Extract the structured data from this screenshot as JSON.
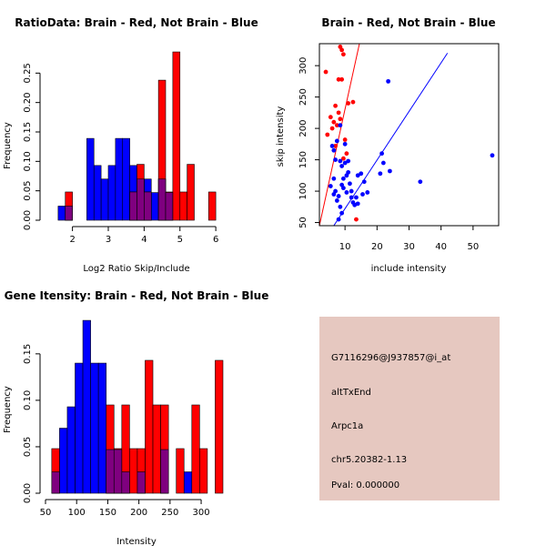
{
  "colors": {
    "red": "#ff0000",
    "blue": "#0000ff",
    "purple": "#7f007f",
    "infoBg": "#e6c8c0",
    "pval": "#b00000"
  },
  "chart_data": [
    {
      "id": "ratio",
      "type": "histogram",
      "title": "RatioData: Brain - Red, Not Brain - Blue",
      "xlabel": "Log2 Ratio Skip/Include",
      "ylabel": "Frequency",
      "xlim": [
        1.4,
        6.2
      ],
      "ylim": [
        0,
        0.3
      ],
      "xticks": [
        2,
        3,
        4,
        5,
        6
      ],
      "yticks": [
        0,
        0.05,
        0.1,
        0.15,
        0.2,
        0.25
      ],
      "ytick_labels": [
        "0.00",
        "0.05",
        "0.10",
        "0.15",
        "0.20",
        "0.25"
      ],
      "series": [
        {
          "name": "Not Brain",
          "color": "blue",
          "bins": [
            {
              "x0": 1.6,
              "x1": 1.8,
              "y": 0.024
            },
            {
              "x0": 1.8,
              "x1": 2.0,
              "y": 0.024
            },
            {
              "x0": 2.4,
              "x1": 2.6,
              "y": 0.139
            },
            {
              "x0": 2.6,
              "x1": 2.8,
              "y": 0.093
            },
            {
              "x0": 2.8,
              "x1": 3.0,
              "y": 0.07
            },
            {
              "x0": 3.0,
              "x1": 3.2,
              "y": 0.093
            },
            {
              "x0": 3.2,
              "x1": 3.4,
              "y": 0.139
            },
            {
              "x0": 3.4,
              "x1": 3.6,
              "y": 0.139
            },
            {
              "x0": 3.6,
              "x1": 3.8,
              "y": 0.093
            },
            {
              "x0": 3.8,
              "x1": 4.0,
              "y": 0.07
            },
            {
              "x0": 4.0,
              "x1": 4.2,
              "y": 0.07
            },
            {
              "x0": 4.2,
              "x1": 4.4,
              "y": 0.047
            },
            {
              "x0": 4.4,
              "x1": 4.6,
              "y": 0.07
            },
            {
              "x0": 4.6,
              "x1": 4.8,
              "y": 0.047
            }
          ]
        },
        {
          "name": "Brain",
          "color": "red",
          "bins": [
            {
              "x0": 1.8,
              "x1": 2.0,
              "y": 0.048
            },
            {
              "x0": 3.6,
              "x1": 3.8,
              "y": 0.048
            },
            {
              "x0": 3.8,
              "x1": 4.0,
              "y": 0.095
            },
            {
              "x0": 4.0,
              "x1": 4.2,
              "y": 0.048
            },
            {
              "x0": 4.4,
              "x1": 4.6,
              "y": 0.238
            },
            {
              "x0": 4.6,
              "x1": 4.8,
              "y": 0.048
            },
            {
              "x0": 4.8,
              "x1": 5.0,
              "y": 0.286
            },
            {
              "x0": 5.0,
              "x1": 5.2,
              "y": 0.048
            },
            {
              "x0": 5.2,
              "x1": 5.4,
              "y": 0.095
            },
            {
              "x0": 5.8,
              "x1": 6.0,
              "y": 0.048
            }
          ]
        }
      ]
    },
    {
      "id": "scatter",
      "type": "scatter",
      "title": "Brain - Red, Not Brain - Blue",
      "xlabel": "include intensity",
      "ylabel": "skip intensity",
      "xlim": [
        2,
        58
      ],
      "ylim": [
        45,
        335
      ],
      "xticks": [
        10,
        20,
        30,
        40,
        50
      ],
      "yticks": [
        50,
        100,
        150,
        200,
        250,
        300
      ],
      "lines": [
        {
          "color": "red",
          "x0": 2,
          "y0": 45,
          "x1": 14.5,
          "y1": 335
        },
        {
          "color": "blue",
          "x0": 6.5,
          "y0": 45,
          "x1": 42,
          "y1": 320
        }
      ],
      "series": [
        {
          "name": "Brain",
          "color": "red",
          "points": [
            [
              4,
              290
            ],
            [
              4.5,
              190
            ],
            [
              5.5,
              218
            ],
            [
              6,
              200
            ],
            [
              6.5,
              210
            ],
            [
              7,
              236
            ],
            [
              7.5,
              205
            ],
            [
              8,
              278
            ],
            [
              8.5,
              330
            ],
            [
              9,
              325
            ],
            [
              9,
              278
            ],
            [
              9.5,
              318
            ],
            [
              10,
              182
            ],
            [
              10.5,
              160
            ],
            [
              8,
              225
            ],
            [
              8.5,
              215
            ],
            [
              7,
              172
            ],
            [
              11,
              240
            ],
            [
              12.5,
              242
            ],
            [
              9.5,
              152
            ],
            [
              13.5,
              55
            ]
          ]
        },
        {
          "name": "Not Brain",
          "color": "blue",
          "points": [
            [
              5.5,
              108
            ],
            [
              6,
              172
            ],
            [
              6.5,
              165
            ],
            [
              6.5,
              95
            ],
            [
              7,
              100
            ],
            [
              7.5,
              85
            ],
            [
              8,
              92
            ],
            [
              8.5,
              148
            ],
            [
              8.5,
              75
            ],
            [
              9,
              140
            ],
            [
              9,
              110
            ],
            [
              9.5,
              120
            ],
            [
              9.5,
              105
            ],
            [
              10,
              175
            ],
            [
              10,
              145
            ],
            [
              10.5,
              125
            ],
            [
              11,
              130
            ],
            [
              11,
              148
            ],
            [
              11.5,
              112
            ],
            [
              12,
              90
            ],
            [
              12,
              100
            ],
            [
              12.5,
              82
            ],
            [
              13,
              78
            ],
            [
              13.5,
              90
            ],
            [
              14,
              125
            ],
            [
              14,
              80
            ],
            [
              15,
              128
            ],
            [
              15.5,
              95
            ],
            [
              16,
              115
            ],
            [
              17,
              98
            ],
            [
              21,
              128
            ],
            [
              21.5,
              160
            ],
            [
              22,
              145
            ],
            [
              23.5,
              275
            ],
            [
              24,
              132
            ],
            [
              33.5,
              115
            ],
            [
              56,
              157
            ],
            [
              8,
              55
            ],
            [
              9,
              65
            ],
            [
              7.5,
              180
            ],
            [
              6.5,
              120
            ],
            [
              10.5,
              98
            ],
            [
              8.5,
              205
            ],
            [
              7,
              150
            ]
          ]
        }
      ]
    },
    {
      "id": "intensity",
      "type": "histogram",
      "title": "Gene Itensity: Brain - Red, Not Brain - Blue",
      "xlabel": "Intensity",
      "ylabel": "Frequency",
      "xlim": [
        50,
        335
      ],
      "ylim": [
        0,
        0.19
      ],
      "xticks": [
        50,
        100,
        150,
        200,
        250,
        300
      ],
      "yticks": [
        0,
        0.05,
        0.1,
        0.15
      ],
      "ytick_labels": [
        "0.00",
        "0.05",
        "0.10",
        "0.15"
      ],
      "series": [
        {
          "name": "Not Brain",
          "color": "blue",
          "bins": [
            {
              "x0": 60,
              "x1": 72.5,
              "y": 0.023
            },
            {
              "x0": 72.5,
              "x1": 85,
              "y": 0.07
            },
            {
              "x0": 85,
              "x1": 97.5,
              "y": 0.093
            },
            {
              "x0": 97.5,
              "x1": 110,
              "y": 0.14
            },
            {
              "x0": 110,
              "x1": 122.5,
              "y": 0.186
            },
            {
              "x0": 122.5,
              "x1": 135,
              "y": 0.14
            },
            {
              "x0": 135,
              "x1": 147.5,
              "y": 0.14
            },
            {
              "x0": 147.5,
              "x1": 160,
              "y": 0.047
            },
            {
              "x0": 160,
              "x1": 172.5,
              "y": 0.047
            },
            {
              "x0": 172.5,
              "x1": 185,
              "y": 0.023
            },
            {
              "x0": 197.5,
              "x1": 210,
              "y": 0.023
            },
            {
              "x0": 235,
              "x1": 247.5,
              "y": 0.047
            },
            {
              "x0": 272.5,
              "x1": 285,
              "y": 0.023
            }
          ]
        },
        {
          "name": "Brain",
          "color": "red",
          "bins": [
            {
              "x0": 60,
              "x1": 72.5,
              "y": 0.048
            },
            {
              "x0": 147.5,
              "x1": 160,
              "y": 0.095
            },
            {
              "x0": 160,
              "x1": 172.5,
              "y": 0.048
            },
            {
              "x0": 172.5,
              "x1": 185,
              "y": 0.095
            },
            {
              "x0": 185,
              "x1": 197.5,
              "y": 0.048
            },
            {
              "x0": 197.5,
              "x1": 210,
              "y": 0.048
            },
            {
              "x0": 210,
              "x1": 222.5,
              "y": 0.143
            },
            {
              "x0": 222.5,
              "x1": 235,
              "y": 0.095
            },
            {
              "x0": 235,
              "x1": 247.5,
              "y": 0.095
            },
            {
              "x0": 260,
              "x1": 272.5,
              "y": 0.048
            },
            {
              "x0": 285,
              "x1": 297.5,
              "y": 0.095
            },
            {
              "x0": 297.5,
              "x1": 310,
              "y": 0.048
            },
            {
              "x0": 322.5,
              "x1": 335,
              "y": 0.143
            }
          ]
        }
      ]
    }
  ],
  "info": {
    "probe_id": "G7116296@J937857@i_at",
    "event_type": "altTxEnd",
    "gene": "Arpc1a",
    "location": "chr5.20382-1.13",
    "pval": "Pval: 0.000000"
  }
}
